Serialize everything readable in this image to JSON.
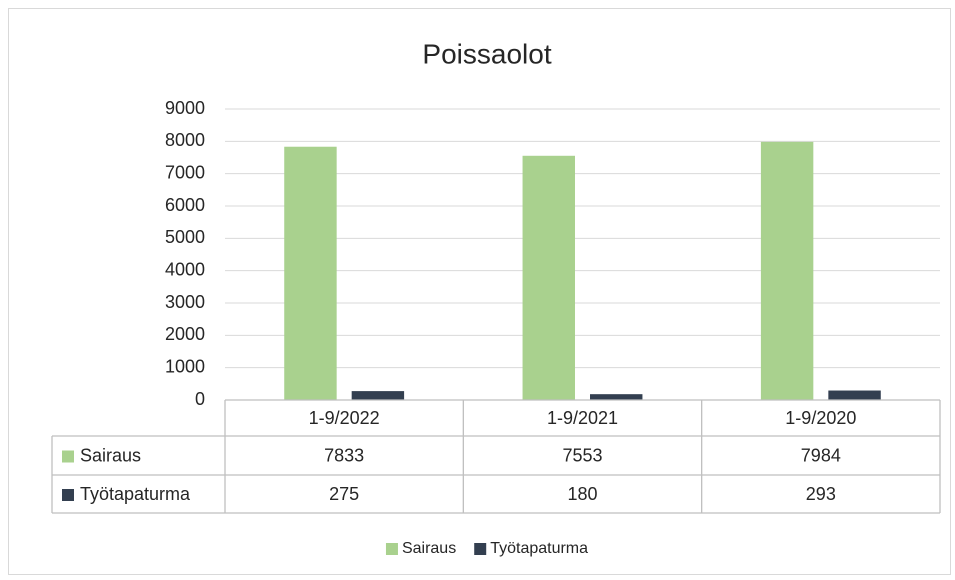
{
  "chart_data": {
    "type": "bar",
    "title": "Poissaolot",
    "categories": [
      "1-9/2022",
      "1-9/2021",
      "1-9/2020"
    ],
    "series": [
      {
        "name": "Sairaus",
        "color": "#a9d18e",
        "values": [
          7833,
          7553,
          7984
        ]
      },
      {
        "name": "Työtapaturma",
        "color": "#333f50",
        "values": [
          275,
          180,
          293
        ]
      }
    ],
    "ylim": [
      0,
      9000
    ],
    "yticks": [
      0,
      1000,
      2000,
      3000,
      4000,
      5000,
      6000,
      7000,
      8000,
      9000
    ],
    "grid": true,
    "legend": "bottom",
    "data_table": true
  }
}
